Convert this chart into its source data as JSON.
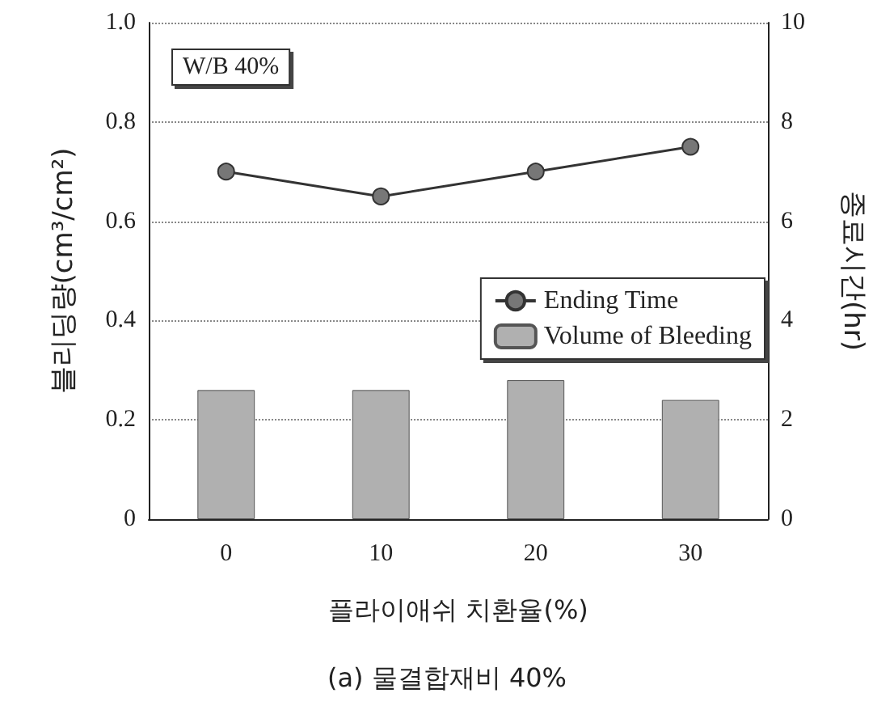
{
  "chart_data": {
    "type": "bar",
    "categories": [
      "0",
      "10",
      "20",
      "30"
    ],
    "series": [
      {
        "name": "Ending Time",
        "type": "line",
        "axis": "y2",
        "color": "#333333",
        "values": [
          7.0,
          6.5,
          7.0,
          7.5
        ]
      },
      {
        "name": "Volume of Bleeding",
        "color": "#b0b0b0",
        "values": [
          0.26,
          0.26,
          0.28,
          0.24
        ]
      }
    ],
    "xlabel": "플라이애쉬 치환율(%)",
    "ylabel": "블리딩량(cm³/cm²)",
    "y2label": "종료시간(hr)",
    "ylim": [
      0,
      1.0
    ],
    "yticks": [
      0,
      {
        "value": 0.2,
        "label": "0.2"
      },
      {
        "value": 0.4,
        "label": "0.4"
      },
      {
        "value": 0.6,
        "label": "0.6"
      },
      {
        "value": 0.8,
        "label": "0.8"
      },
      {
        "value": 1.0,
        "label": "1.0"
      }
    ],
    "y2lim": [
      0,
      10
    ],
    "y2ticks": [
      0,
      2,
      4,
      6,
      8,
      10
    ],
    "annotations": [
      "W/B 40%",
      "(a) 물결합재비 40%"
    ],
    "grid": "y",
    "legend": "right",
    "marker": "circle",
    "line_style": "solid"
  }
}
